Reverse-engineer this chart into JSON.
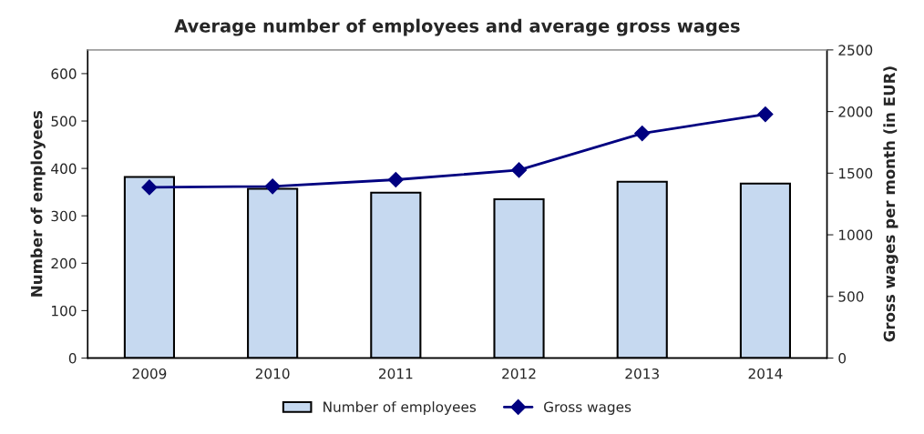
{
  "chart_data": {
    "type": "bar",
    "title": "Average number of employees and average gross wages",
    "categories": [
      "2009",
      "2010",
      "2011",
      "2012",
      "2013",
      "2014"
    ],
    "ylabel": "Number of employees",
    "y2label": "Gross wages per month (in EUR)",
    "series": [
      {
        "name": "Number of employees",
        "color": "#c6d9f0",
        "values": [
          382,
          357,
          349,
          335,
          372,
          368
        ]
      },
      {
        "name": "Gross wages",
        "type": "line",
        "axis": "y2",
        "color": "#000080",
        "marker": "diamond",
        "values": [
          1385,
          1393,
          1447,
          1525,
          1823,
          1978
        ]
      }
    ],
    "ylim": [
      0,
      650
    ],
    "yticks": [
      0,
      100,
      200,
      300,
      400,
      500,
      600
    ],
    "y2lim": [
      0,
      2500
    ],
    "y2ticks": [
      0,
      500,
      1000,
      1500,
      2000,
      2500
    ],
    "grid": false,
    "legend": "bottom"
  }
}
